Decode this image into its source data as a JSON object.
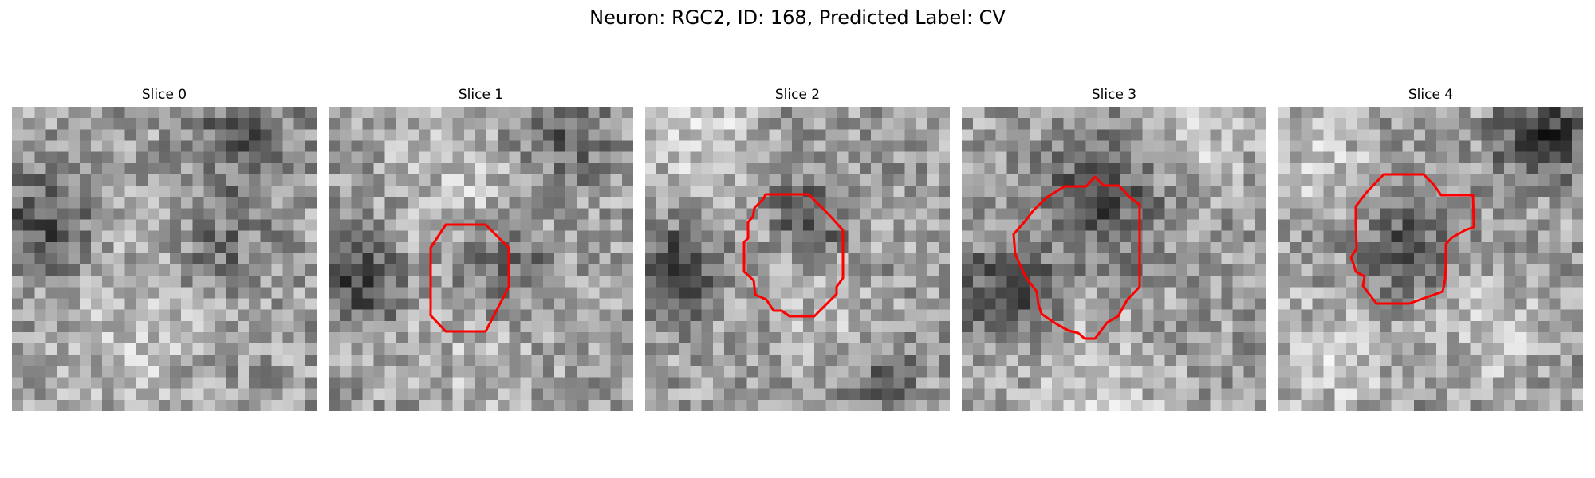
{
  "figure": {
    "title": "Neuron: RGC2, ID: 168, Predicted Label: CV"
  },
  "contour_color": "#ff0000",
  "colormap": "gray",
  "panels": [
    {
      "label": "Slice 0",
      "has_contour": false
    },
    {
      "label": "Slice 1",
      "has_contour": true
    },
    {
      "label": "Slice 2",
      "has_contour": true
    },
    {
      "label": "Slice 3",
      "has_contour": true
    },
    {
      "label": "Slice 4",
      "has_contour": true
    }
  ]
}
